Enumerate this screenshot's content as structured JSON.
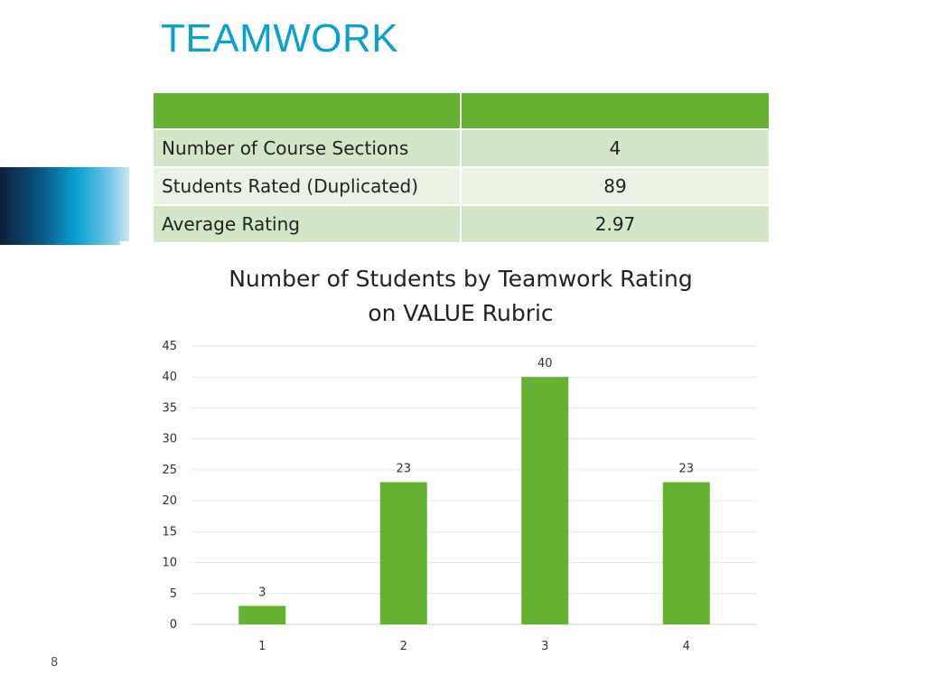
{
  "slide": {
    "title": "TEAMWORK",
    "page_number": "8"
  },
  "table": {
    "header": [
      "",
      ""
    ],
    "rows": [
      {
        "label": "Number of Course Sections",
        "value": "4"
      },
      {
        "label": "Students Rated (Duplicated)",
        "value": "89"
      },
      {
        "label": "Average Rating",
        "value": "2.97"
      }
    ]
  },
  "chart_data": {
    "type": "bar",
    "title_line1": "Number of Students by Teamwork Rating",
    "title_line2": "on VALUE Rubric",
    "categories": [
      "1",
      "2",
      "3",
      "4"
    ],
    "values": [
      3,
      23,
      40,
      23
    ],
    "data_labels": [
      "3",
      "23",
      "40",
      "23"
    ],
    "ylim": [
      0,
      45
    ],
    "yticks": [
      "0",
      "5",
      "10",
      "15",
      "20",
      "25",
      "30",
      "35",
      "40",
      "45"
    ],
    "grid": true,
    "bar_color": "#65b232",
    "xlabel": "",
    "ylabel": ""
  },
  "colors": {
    "title": "#0aa0cf",
    "accent_green": "#65b232"
  }
}
